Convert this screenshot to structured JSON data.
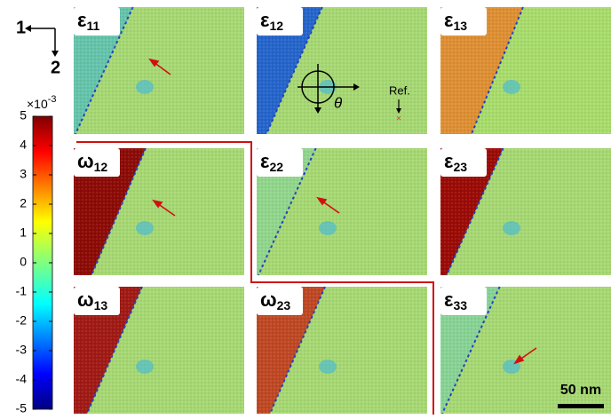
{
  "axes": {
    "first": "1",
    "second": "2"
  },
  "colorbar": {
    "multiplier": "×10",
    "exponent": "-3",
    "lim": [
      -5,
      5
    ],
    "ticks": [
      5,
      4,
      3,
      2,
      1,
      0,
      -1,
      -2,
      -3,
      -4,
      -5
    ]
  },
  "panels": [
    {
      "symbol": "ε",
      "subscript": "11"
    },
    {
      "symbol": "ε",
      "subscript": "12"
    },
    {
      "symbol": "ε",
      "subscript": "13"
    },
    {
      "symbol": "ω",
      "subscript": "12"
    },
    {
      "symbol": "ε",
      "subscript": "22"
    },
    {
      "symbol": "ε",
      "subscript": "23"
    },
    {
      "symbol": "ω",
      "subscript": "13"
    },
    {
      "symbol": "ω",
      "subscript": "23"
    },
    {
      "symbol": "ε",
      "subscript": "33"
    }
  ],
  "annotations": {
    "angle": "θ",
    "reference": "Ref.",
    "scale_bar": "50 nm"
  }
}
